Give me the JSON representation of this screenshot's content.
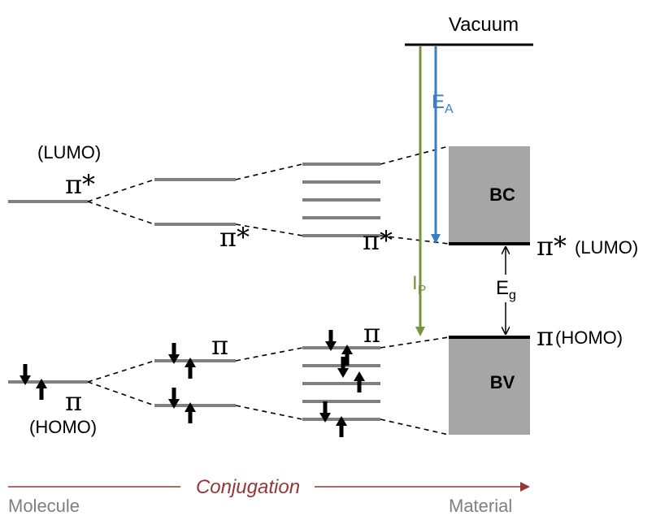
{
  "labels": {
    "vacuum": "Vacuum",
    "ea_main": "E",
    "ea_sub": "A",
    "ip_main": "I",
    "ip_sub": "P",
    "eg_main": "E",
    "eg_sub": "g",
    "bc": "BC",
    "bv": "BV",
    "lumo_left": "(LUMO)",
    "homo_left": "(HOMO)",
    "lumo_right": "(LUMO)",
    "homo_right": "(HOMO)",
    "pi_star": "π*",
    "pi": "π",
    "conjugation": "Conjugation",
    "molecule": "Molecule",
    "material": "Material"
  },
  "colors": {
    "ea_arrow": "#3a7ec4",
    "ip_arrow": "#77933c",
    "conjugation": "#953735",
    "band": "#a6a6a6",
    "level": "#808080"
  }
}
